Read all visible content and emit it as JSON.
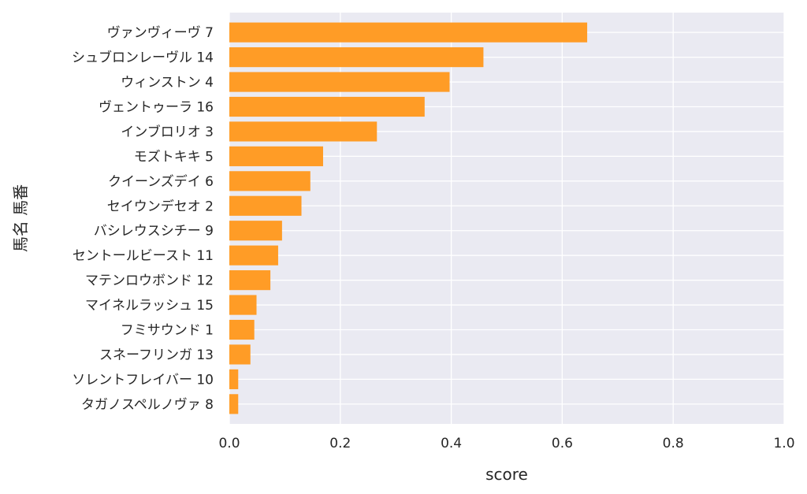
{
  "chart_data": {
    "type": "bar",
    "orientation": "horizontal",
    "categories": [
      "ヴァンヴィーヴ 7",
      "シュブロンレーヴル 14",
      "ウィンストン 4",
      "ヴェントゥーラ 16",
      "インブロリオ 3",
      "モズトキキ 5",
      "クイーンズデイ 6",
      "セイウンデセオ 2",
      "バシレウスシチー 9",
      "セントールビースト 11",
      "マテンロウボンド 12",
      "マイネルラッシュ 15",
      "フミサウンド 1",
      "スネーフリンガ 13",
      "ソレントフレイバー 10",
      "タガノスペルノヴァ 8"
    ],
    "values": [
      0.645,
      0.458,
      0.397,
      0.352,
      0.266,
      0.169,
      0.146,
      0.13,
      0.095,
      0.088,
      0.074,
      0.049,
      0.045,
      0.038,
      0.016,
      0.016
    ],
    "xlabel": "score",
    "ylabel": "馬名 馬番",
    "xlim": [
      0,
      1.0
    ],
    "xticks": [
      "0.0",
      "0.2",
      "0.4",
      "0.6",
      "0.8",
      "1.0"
    ],
    "grid": true,
    "colors": {
      "bar": "#ff9c26",
      "background": "#eaeaf2",
      "grid": "#ffffff"
    }
  }
}
